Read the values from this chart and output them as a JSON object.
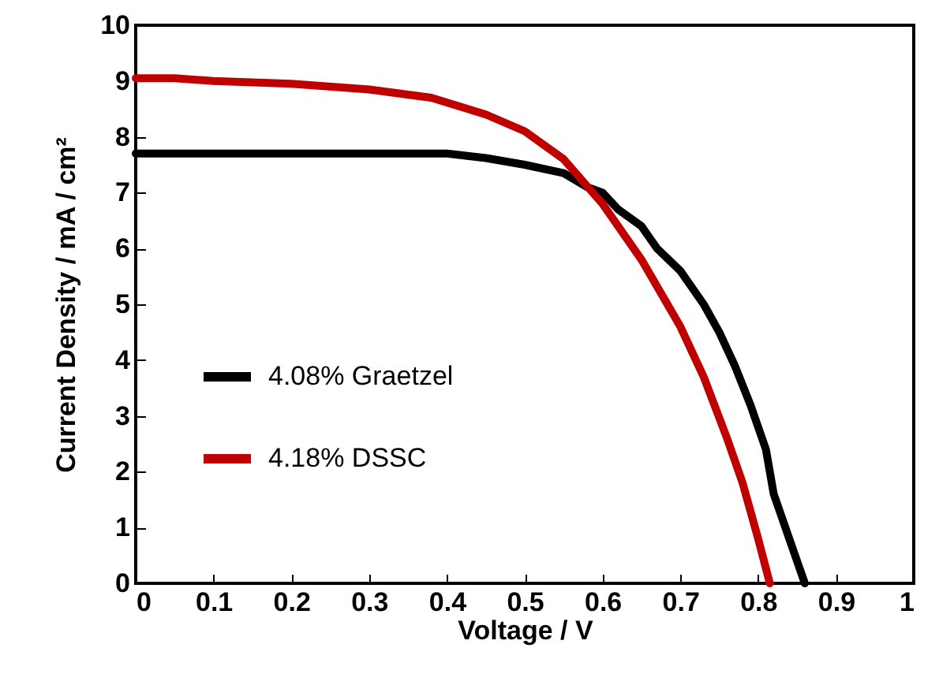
{
  "chart_data": {
    "type": "line",
    "xlabel": "Voltage / V",
    "ylabel": "Current Density / mA / cm²",
    "xlim": [
      0,
      1
    ],
    "ylim": [
      0,
      10
    ],
    "xticks": [
      0,
      0.1,
      0.2,
      0.3,
      0.4,
      0.5,
      0.6,
      0.7,
      0.8,
      0.9,
      1
    ],
    "yticks": [
      0,
      1,
      2,
      3,
      4,
      5,
      6,
      7,
      8,
      9,
      10
    ],
    "grid": false,
    "legend": "left",
    "marker": "none",
    "line_style": "solid",
    "series": [
      {
        "name": "4.08% Graetzel",
        "color": "#000000",
        "x": [
          0,
          0.1,
          0.2,
          0.3,
          0.4,
          0.45,
          0.5,
          0.55,
          0.58,
          0.6,
          0.62,
          0.65,
          0.67,
          0.7,
          0.73,
          0.75,
          0.77,
          0.79,
          0.81,
          0.82,
          0.84,
          0.86
        ],
        "values": [
          7.7,
          7.7,
          7.7,
          7.7,
          7.7,
          7.62,
          7.5,
          7.35,
          7.1,
          7.0,
          6.7,
          6.4,
          6.0,
          5.6,
          5.0,
          4.5,
          3.9,
          3.2,
          2.4,
          1.6,
          0.8,
          0
        ]
      },
      {
        "name": "4.18% DSSC",
        "color": "#c00000",
        "x": [
          0,
          0.05,
          0.1,
          0.2,
          0.3,
          0.38,
          0.45,
          0.5,
          0.55,
          0.6,
          0.65,
          0.7,
          0.73,
          0.76,
          0.78,
          0.8,
          0.815
        ],
        "values": [
          9.05,
          9.05,
          9.0,
          8.95,
          8.85,
          8.7,
          8.4,
          8.1,
          7.6,
          6.8,
          5.8,
          4.6,
          3.7,
          2.6,
          1.8,
          0.8,
          0
        ]
      }
    ]
  }
}
